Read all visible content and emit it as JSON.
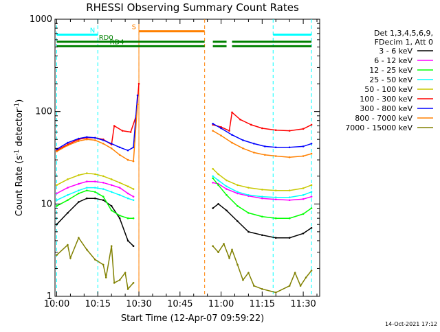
{
  "chart_data": {
    "type": "line",
    "title": "RHESSI Observing Summary Count Rates",
    "xlabel": "Start Time (12-Apr-07 09:59:22)",
    "ylabel": "Count Rate (s⁻¹ detector⁻¹)",
    "ylabel_parts": [
      "Count Rate (s",
      "-1",
      " detector",
      "-1",
      ")"
    ],
    "x_unit": "minutes after 10:00 UT",
    "xlim": [
      -0.63,
      96
    ],
    "ylim": [
      1,
      1000
    ],
    "yscale": "log",
    "x_ticks": [
      0,
      15,
      30,
      45,
      60,
      75,
      90
    ],
    "x_tick_labels": [
      "10:00",
      "10:15",
      "10:30",
      "10:45",
      "11:00",
      "11:15",
      "11:30"
    ],
    "y_ticks": [
      1,
      10,
      100,
      1000
    ],
    "y_tick_labels": [
      "1",
      "10",
      "100",
      "1000"
    ],
    "legend": {
      "header": [
        "Det 1,3,4,5,6,9,",
        "FDecim 1, Att 0"
      ],
      "placement": "right"
    },
    "footer_date": "14-Oct-2021 17:12",
    "series": [
      {
        "name": "3 - 6 keV",
        "color": "#000000",
        "x": [
          0,
          4,
          8,
          11,
          14,
          17,
          20,
          23,
          26,
          28,
          57,
          59,
          62,
          66,
          70,
          75,
          80,
          85,
          90,
          93
        ],
        "y": [
          6,
          8,
          10.5,
          11.5,
          11.5,
          11,
          9.5,
          7,
          4,
          3.5,
          9,
          10,
          8.5,
          6.5,
          5,
          4.6,
          4.3,
          4.3,
          4.8,
          5.5
        ]
      },
      {
        "name": "6 - 12 keV",
        "color": "#ff00ff",
        "x": [
          0,
          4,
          8,
          11,
          14,
          17,
          20,
          23,
          26,
          28,
          57,
          59,
          62,
          66,
          70,
          75,
          80,
          85,
          90,
          93
        ],
        "y": [
          13,
          15,
          16.5,
          17.5,
          17.5,
          17,
          16,
          15,
          13,
          12,
          17,
          16.5,
          14.5,
          13,
          12.2,
          11.5,
          11.2,
          11,
          11.3,
          12
        ]
      },
      {
        "name": "12 - 25 keV",
        "color": "#00ff00",
        "x": [
          0,
          4,
          8,
          11,
          14,
          17,
          20,
          23,
          26,
          28,
          57,
          59,
          62,
          66,
          70,
          75,
          80,
          85,
          90,
          93
        ],
        "y": [
          9.5,
          11,
          13,
          14,
          13.5,
          12,
          8.5,
          7.5,
          7,
          7,
          19,
          16,
          12.5,
          9.5,
          8,
          7.3,
          7,
          7,
          7.8,
          9
        ]
      },
      {
        "name": "25 - 50 keV",
        "color": "#00ffff",
        "x": [
          0,
          4,
          8,
          11,
          14,
          17,
          20,
          23,
          26,
          28,
          57,
          59,
          62,
          66,
          70,
          75,
          80,
          85,
          90,
          93
        ],
        "y": [
          11,
          12.5,
          14,
          15,
          15,
          14.5,
          13.5,
          12.5,
          11.5,
          11,
          20,
          18,
          15.5,
          13.5,
          12.5,
          12,
          11.8,
          11.8,
          12.5,
          13.5
        ]
      },
      {
        "name": "50 - 100 keV",
        "color": "#c8c800",
        "x": [
          0,
          4,
          8,
          11,
          14,
          17,
          20,
          23,
          26,
          28,
          57,
          59,
          62,
          66,
          70,
          75,
          80,
          85,
          90,
          93
        ],
        "y": [
          16,
          18.5,
          20.5,
          21.5,
          21,
          20,
          18.5,
          17,
          15.5,
          14.5,
          24,
          21,
          18,
          16,
          15,
          14.3,
          14,
          14,
          14.8,
          16
        ]
      },
      {
        "name": "100 - 300 keV",
        "color": "#ff0000",
        "x": [
          0,
          4,
          8,
          11,
          14,
          17,
          20,
          21,
          24,
          27,
          29,
          30,
          57,
          60,
          63,
          64,
          67,
          71,
          75,
          80,
          85,
          90,
          93
        ],
        "y": [
          38,
          44,
          50,
          52,
          52,
          50,
          44,
          70,
          62,
          60,
          90,
          200,
          72,
          68,
          62,
          98,
          82,
          72,
          66,
          63,
          62,
          65,
          72
        ]
      },
      {
        "name": "300 - 800 keV",
        "color": "#0000ff",
        "x": [
          0,
          4,
          8,
          11,
          14,
          17,
          20,
          23,
          26,
          28,
          29.5,
          57,
          60,
          64,
          68,
          72,
          76,
          80,
          85,
          90,
          93
        ],
        "y": [
          39,
          46,
          51,
          53,
          52,
          49,
          45,
          41,
          38,
          41,
          150,
          74,
          66,
          56,
          49,
          45,
          42,
          41,
          41,
          42,
          45
        ]
      },
      {
        "name": "800 - 7000 keV",
        "color": "#ff8000",
        "x": [
          0,
          4,
          8,
          11,
          14,
          17,
          20,
          23,
          26,
          28,
          29.5,
          57,
          60,
          64,
          68,
          72,
          76,
          80,
          85,
          90,
          93
        ],
        "y": [
          37,
          43,
          48,
          50,
          49,
          45,
          40,
          34,
          30,
          29,
          120,
          62,
          55,
          46,
          40,
          36,
          34,
          33,
          32,
          33,
          35
        ]
      },
      {
        "name": "7000 - 15000 keV",
        "color": "#808000",
        "x": [
          0,
          4,
          5,
          8,
          11,
          14,
          17,
          18,
          20,
          21,
          23,
          25,
          26,
          28,
          57,
          59,
          61,
          63,
          64,
          66,
          68,
          70,
          72,
          75,
          80,
          85,
          87,
          89,
          91,
          93
        ],
        "y": [
          2.8,
          3.6,
          2.6,
          4.3,
          3.2,
          2.5,
          2.2,
          1.6,
          3.5,
          1.4,
          1.5,
          1.8,
          1.2,
          1.4,
          3.5,
          3,
          3.7,
          2.6,
          3.2,
          2.2,
          1.5,
          1.8,
          1.3,
          1.2,
          1.1,
          1.3,
          1.8,
          1.3,
          1.6,
          1.9
        ]
      }
    ],
    "annotations": {
      "bars": [
        {
          "label": "N",
          "color": "#00ffff",
          "segments": [
            [
              0,
              15
            ],
            [
              79,
              93
            ]
          ],
          "y": 680
        },
        {
          "label": "S",
          "color": "#ff8000",
          "segments": [
            [
              30,
              54
            ]
          ],
          "y": 740
        },
        {
          "label": "RD0",
          "color": "#008000",
          "segments": [
            [
              0,
              54
            ],
            [
              57,
              62
            ],
            [
              64,
              93
            ]
          ],
          "y": 570
        },
        {
          "label": "RD4",
          "color": "#008000",
          "segments": [
            [
              0,
              54
            ],
            [
              57,
              62
            ],
            [
              64,
              93
            ]
          ],
          "y": 510
        }
      ],
      "vlines_cyan": [
        0,
        15,
        79,
        93
      ],
      "vlines_orange": [
        30,
        54
      ],
      "vlines_orange_solid": [
        30
      ]
    }
  }
}
